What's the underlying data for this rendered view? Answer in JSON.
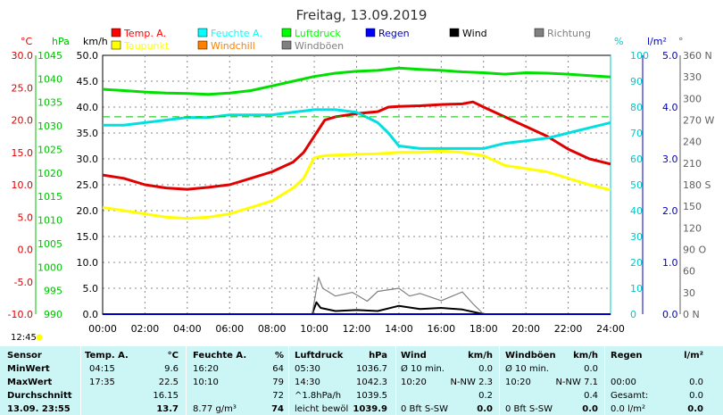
{
  "chart_data": {
    "type": "line",
    "title": "Freitag, 13.09.2019",
    "x_ticks": [
      "00:00",
      "02:00",
      "04:00",
      "06:00",
      "08:00",
      "10:00",
      "12:00",
      "14:00",
      "16:00",
      "18:00",
      "20:00",
      "22:00",
      "24:00"
    ],
    "xlim": [
      0,
      24
    ],
    "axes": [
      {
        "label": "°C",
        "color": "#e00000",
        "ticks": [
          "30.0",
          "25.0",
          "20.0",
          "15.0",
          "10.0",
          "5.0",
          "0.0",
          "-5.0",
          "-10.0"
        ],
        "ylim": [
          -10,
          30
        ]
      },
      {
        "label": "hPa",
        "color": "#00c000",
        "ticks": [
          "1045",
          "1040",
          "1035",
          "1030",
          "1025",
          "1020",
          "1015",
          "1010",
          "1005",
          "1000",
          "995",
          "990"
        ],
        "ylim": [
          990,
          1045
        ]
      },
      {
        "label": "km/h",
        "color": "#000000",
        "ticks": [
          "50.0",
          "45.0",
          "40.0",
          "35.0",
          "30.0",
          "25.0",
          "20.0",
          "15.0",
          "10.0",
          "5.0",
          "0.0"
        ],
        "ylim": [
          0,
          50
        ]
      },
      {
        "label": "%",
        "color": "#00c8c8",
        "ticks": [
          "100",
          "90",
          "80",
          "70",
          "60",
          "50",
          "40",
          "30",
          "20",
          "10",
          "0"
        ],
        "ylim": [
          0,
          100
        ]
      },
      {
        "label": "l/m²",
        "color": "#0000c0",
        "ticks": [
          "5.0",
          "4.0",
          "3.0",
          "2.0",
          "1.0",
          "0.0"
        ],
        "ylim": [
          0,
          5
        ]
      },
      {
        "label": "°",
        "color": "#606060",
        "ticks": [
          "360 N",
          "330",
          "300",
          "270 W",
          "240",
          "210",
          "180 S",
          "150",
          "120",
          "90 O",
          "60",
          "30",
          "0 N"
        ],
        "ylim": [
          0,
          360
        ]
      }
    ],
    "legend": [
      {
        "name": "Temp. A.",
        "color": "#ff0000"
      },
      {
        "name": "Taupunkt",
        "color": "#ffff00"
      },
      {
        "name": "Feuchte A.",
        "color": "#00ffff"
      },
      {
        "name": "Windchill",
        "color": "#ff8000"
      },
      {
        "name": "Luftdruck",
        "color": "#00ff00"
      },
      {
        "name": "Windböen",
        "color": "#808080"
      },
      {
        "name": "Regen",
        "color": "#0000ff"
      },
      {
        "name": "Wind",
        "color": "#000000"
      },
      {
        "name": "Richtung",
        "color": "#808080"
      }
    ],
    "series": [
      {
        "name": "Temp. A.",
        "axis": "°C",
        "color": "#e00000",
        "x": [
          0,
          1,
          2,
          3,
          4,
          5,
          6,
          7,
          8,
          9,
          9.5,
          10,
          10.5,
          11,
          12,
          13,
          13.5,
          14,
          15,
          16,
          17,
          17.5,
          18,
          19,
          20,
          21,
          22,
          23,
          24
        ],
        "y": [
          11.5,
          11,
          10,
          9.5,
          9.3,
          9.6,
          10,
          11,
          12,
          13.5,
          15,
          17.5,
          20,
          20.5,
          21,
          21.3,
          22,
          22.1,
          22.2,
          22.4,
          22.5,
          22.8,
          22,
          20.5,
          19,
          17.5,
          15.5,
          14,
          13.2
        ]
      },
      {
        "name": "Taupunkt",
        "axis": "°C",
        "color": "#ffff00",
        "x": [
          0,
          1,
          2,
          3,
          4,
          5,
          6,
          7,
          8,
          9,
          9.5,
          10,
          10.5,
          11,
          12,
          13,
          14,
          15,
          16,
          17,
          18,
          19,
          20,
          21,
          22,
          23,
          24
        ],
        "y": [
          6.5,
          6,
          5.5,
          5,
          4.8,
          5,
          5.5,
          6.5,
          7.5,
          9.5,
          11,
          14.2,
          14.5,
          14.6,
          14.7,
          14.8,
          15,
          15,
          15.2,
          15,
          14.5,
          13,
          12.5,
          12,
          11,
          10,
          9.2
        ]
      },
      {
        "name": "Feuchte A.",
        "axis": "%",
        "color": "#00e0e0",
        "x": [
          0,
          1,
          2,
          3,
          4,
          5,
          6,
          7,
          8,
          9,
          10,
          11,
          12,
          13,
          13.5,
          14,
          15,
          16,
          17,
          18,
          19,
          20,
          21,
          22,
          23,
          24
        ],
        "y": [
          73,
          73,
          74,
          75,
          76,
          76,
          77,
          77,
          77,
          78,
          79,
          79,
          78,
          74,
          70,
          65,
          64,
          64,
          64,
          64,
          66,
          67,
          68,
          70,
          72,
          74
        ]
      },
      {
        "name": "Luftdruck",
        "axis": "hPa",
        "color": "#00e000",
        "x": [
          0,
          1,
          2,
          3,
          4,
          5,
          6,
          7,
          8,
          9,
          10,
          11,
          12,
          13,
          14,
          15,
          16,
          17,
          18,
          19,
          20,
          21,
          22,
          23,
          24
        ],
        "y": [
          1037.8,
          1037.5,
          1037.2,
          1037,
          1036.9,
          1036.7,
          1037,
          1037.5,
          1038.5,
          1039.5,
          1040.5,
          1041.2,
          1041.6,
          1041.8,
          1042.3,
          1042,
          1041.8,
          1041.5,
          1041.3,
          1041,
          1041.3,
          1041.2,
          1041,
          1040.7,
          1040.4
        ]
      },
      {
        "name": "Wind",
        "axis": "km/h",
        "color": "#000000",
        "x": [
          9.9,
          10.1,
          10.3,
          11,
          12,
          13,
          14,
          15,
          16,
          17,
          18
        ],
        "y": [
          0,
          2.3,
          1.2,
          0.6,
          0.8,
          0.6,
          1.6,
          1,
          1.2,
          0.9,
          0
        ]
      },
      {
        "name": "Windböen",
        "axis": "km/h",
        "color": "#808080",
        "x": [
          9.9,
          10.2,
          10.4,
          11,
          11.8,
          12.5,
          13,
          14,
          14.5,
          15,
          16,
          17,
          17.5,
          18
        ],
        "y": [
          0,
          7.1,
          5,
          3.5,
          4.2,
          2.5,
          4.4,
          5,
          3.5,
          4,
          2.6,
          4.3,
          2,
          0
        ]
      },
      {
        "name": "Regen",
        "axis": "l/m²",
        "color": "#0000c0",
        "x": [
          0,
          24
        ],
        "y": [
          0,
          0
        ]
      }
    ],
    "annotations": {
      "time_left": "12:45"
    }
  },
  "stats": {
    "headers": {
      "sensor": "Sensor",
      "temp": "Temp. A.",
      "temp_unit": "°C",
      "hum": "Feuchte A.",
      "hum_unit": "%",
      "press": "Luftdruck",
      "press_unit": "hPa",
      "wind": "Wind",
      "wind_unit": "km/h",
      "gust": "Windböen",
      "gust_unit": "km/h",
      "rain": "Regen",
      "rain_unit": "l/m²"
    },
    "rows": [
      {
        "label": "MinWert",
        "temp_t": "04:15",
        "temp_v": "9.6",
        "hum_t": "16:20",
        "hum_v": "64",
        "press_t": "05:30",
        "press_v": "1036.7",
        "wind_t": "Ø 10 min.",
        "wind_d": "",
        "wind_v": "0.0",
        "gust_t": "Ø 10 min.",
        "gust_d": "",
        "gust_v": "0.0",
        "rain_t": "",
        "rain_v": ""
      },
      {
        "label": "MaxWert",
        "temp_t": "17:35",
        "temp_v": "22.5",
        "hum_t": "10:10",
        "hum_v": "79",
        "press_t": "14:30",
        "press_v": "1042.3",
        "wind_t": "10:20",
        "wind_d": "N-NW 2.3",
        "wind_v": "",
        "gust_t": "10:20",
        "gust_d": "N-NW 7.1",
        "gust_v": "",
        "rain_t": "00:00",
        "rain_v": "0.0"
      },
      {
        "label": "Durchschnitt",
        "temp_t": "",
        "temp_v": "16.15",
        "hum_t": "",
        "hum_v": "72",
        "press_t": "^1.8hPa/h",
        "press_v": "1039.5",
        "wind_t": "",
        "wind_d": "",
        "wind_v": "0.2",
        "gust_t": "",
        "gust_d": "",
        "gust_v": "0.4",
        "rain_t": "Gesamt:",
        "rain_v": "0.0"
      },
      {
        "label": "13.09. 23:55",
        "temp_t": "",
        "temp_v": "13.7",
        "hum_t": "8.77 g/m³",
        "hum_v": "74",
        "press_t": "leicht bewöl",
        "press_v": "1039.9",
        "wind_t": "0 Bft S-SW",
        "wind_d": "",
        "wind_v": "0.0",
        "gust_t": "0 Bft S-SW",
        "gust_d": "",
        "gust_v": "0.0",
        "rain_t": "0.0 l/m²",
        "rain_v": "0.0"
      }
    ]
  }
}
